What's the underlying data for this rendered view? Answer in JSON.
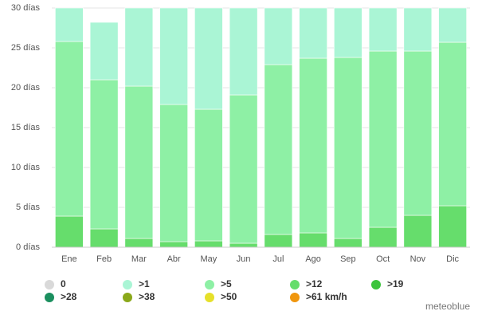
{
  "chart_data": {
    "type": "stacked-bar",
    "categories": [
      "Ene",
      "Feb",
      "Mar",
      "Abr",
      "May",
      "Jun",
      "Jul",
      "Ago",
      "Sep",
      "Oct",
      "Nov",
      "Dic"
    ],
    "series": [
      {
        "name": "0",
        "color": "#d9d9d9",
        "values": [
          0,
          0,
          0,
          0,
          0,
          0,
          0,
          0,
          0,
          0,
          0,
          0
        ]
      },
      {
        "name": ">1",
        "color": "#aaf5d5",
        "values": [
          4.2,
          7.2,
          9.8,
          12.1,
          12.7,
          10.9,
          7.1,
          6.3,
          6.2,
          5.4,
          5.4,
          4.3
        ]
      },
      {
        "name": ">5",
        "color": "#8ef0a5",
        "values": [
          21.9,
          18.7,
          19.1,
          17.2,
          16.5,
          18.6,
          21.3,
          21.9,
          22.7,
          22.1,
          20.6,
          20.5
        ]
      },
      {
        "name": ">12",
        "color": "#66dd6c",
        "values": [
          3.9,
          2.3,
          1.1,
          0.7,
          0.8,
          0.5,
          1.6,
          1.8,
          1.1,
          2.5,
          4.0,
          5.2
        ]
      },
      {
        "name": ">19",
        "color": "#3cc43c",
        "values": [
          0,
          0,
          0,
          0,
          0,
          0,
          0,
          0,
          0,
          0,
          0,
          0
        ]
      },
      {
        "name": ">28",
        "color": "#1b8f5f",
        "values": [
          0,
          0,
          0,
          0,
          0,
          0,
          0,
          0,
          0,
          0,
          0,
          0
        ]
      },
      {
        "name": ">38",
        "color": "#8aa81a",
        "values": [
          0,
          0,
          0,
          0,
          0,
          0,
          0,
          0,
          0,
          0,
          0,
          0
        ]
      },
      {
        "name": ">50",
        "color": "#e6e02a",
        "values": [
          0,
          0,
          0,
          0,
          0,
          0,
          0,
          0,
          0,
          0,
          0,
          0
        ]
      },
      {
        "name": ">61 km/h",
        "color": "#f0960e",
        "values": [
          0,
          0,
          0,
          0,
          0,
          0,
          0,
          0,
          0,
          0,
          0,
          0
        ]
      }
    ],
    "ylim": [
      0,
      30
    ],
    "yticks": [
      {
        "value": 0,
        "label": "0 días"
      },
      {
        "value": 5,
        "label": "5 días"
      },
      {
        "value": 10,
        "label": "10 días"
      },
      {
        "value": 15,
        "label": "15 días"
      },
      {
        "value": 20,
        "label": "20 días"
      },
      {
        "value": 25,
        "label": "25 días"
      },
      {
        "value": 30,
        "label": "30 días"
      }
    ],
    "grid": true,
    "credit": "meteoblue"
  }
}
